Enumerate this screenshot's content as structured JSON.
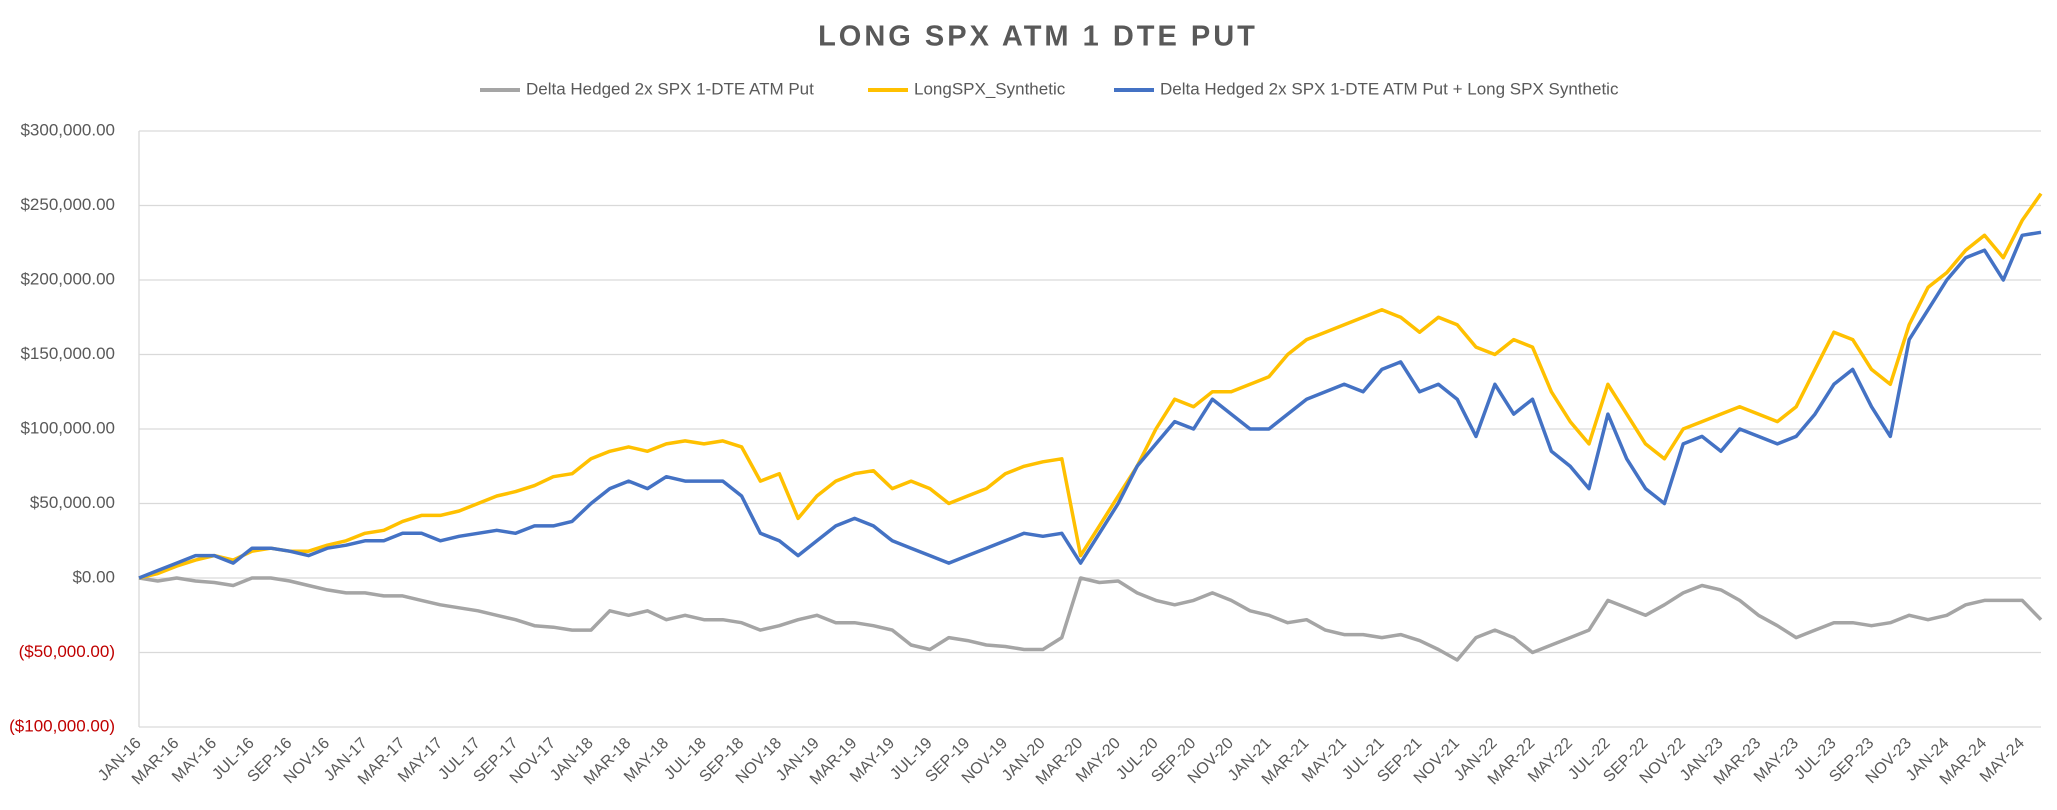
{
  "chart_data": {
    "type": "line",
    "title": "LONG SPX ATM 1 DTE PUT",
    "categories": [
      "JAN-16",
      null,
      "MAR-16",
      null,
      "MAY-16",
      null,
      "JUL-16",
      null,
      "SEP-16",
      null,
      "NOV-16",
      null,
      "JAN-17",
      null,
      "MAR-17",
      null,
      "MAY-17",
      null,
      "JUL-17",
      null,
      "SEP-17",
      null,
      "NOV-17",
      null,
      "JAN-18",
      null,
      "MAR-18",
      null,
      "MAY-18",
      null,
      "JUL-18",
      null,
      "SEP-18",
      null,
      "NOV-18",
      null,
      "JAN-19",
      null,
      "MAR-19",
      null,
      "MAY-19",
      null,
      "JUL-19",
      null,
      "SEP-19",
      null,
      "NOV-19",
      null,
      "JAN-20",
      null,
      "MAR-20",
      null,
      "MAY-20",
      null,
      "JUL-20",
      null,
      "SEP-20",
      null,
      "NOV-20",
      null,
      "JAN-21",
      null,
      "MAR-21",
      null,
      "MAY-21",
      null,
      "JUL-21",
      null,
      "SEP-21",
      null,
      "NOV-21",
      null,
      "JAN-22",
      null,
      "MAR-22",
      null,
      "MAY-22",
      null,
      "JUL-22",
      null,
      "SEP-22",
      null,
      "NOV-22",
      null,
      "JAN-23",
      null,
      "MAR-23",
      null,
      "MAY-23",
      null,
      "JUL-23",
      null,
      "SEP-23",
      null,
      "NOV-23",
      null,
      "JAN-24",
      null,
      "MAR-24",
      null,
      "MAY-24",
      null
    ],
    "series": [
      {
        "name": "Delta Hedged 2x SPX 1-DTE ATM Put",
        "color": "#a5a5a5",
        "values": [
          0,
          -2000,
          0,
          -2000,
          -3000,
          -5000,
          0,
          0,
          -2000,
          -5000,
          -8000,
          -10000,
          -10000,
          -12000,
          -12000,
          -15000,
          -18000,
          -20000,
          -22000,
          -25000,
          -28000,
          -32000,
          -33000,
          -35000,
          -35000,
          -22000,
          -25000,
          -22000,
          -28000,
          -25000,
          -28000,
          -28000,
          -30000,
          -35000,
          -32000,
          -28000,
          -25000,
          -30000,
          -30000,
          -32000,
          -35000,
          -45000,
          -48000,
          -40000,
          -42000,
          -45000,
          -46000,
          -48000,
          -48000,
          -40000,
          0,
          -3000,
          -2000,
          -10000,
          -15000,
          -18000,
          -15000,
          -10000,
          -15000,
          -22000,
          -25000,
          -30000,
          -28000,
          -35000,
          -38000,
          -38000,
          -40000,
          -38000,
          -42000,
          -48000,
          -55000,
          -40000,
          -35000,
          -40000,
          -50000,
          -45000,
          -40000,
          -35000,
          -15000,
          -20000,
          -25000,
          -18000,
          -10000,
          -5000,
          -8000,
          -15000,
          -25000,
          -32000,
          -40000,
          -35000,
          -30000,
          -30000,
          -32000,
          -30000,
          -25000,
          -28000,
          -25000,
          -18000,
          -15000,
          -15000,
          -15000,
          -28000
        ]
      },
      {
        "name": "LongSPX_Synthetic",
        "color": "#ffc000",
        "values": [
          0,
          3000,
          8000,
          12000,
          15000,
          12000,
          18000,
          20000,
          18000,
          18000,
          22000,
          25000,
          30000,
          32000,
          38000,
          42000,
          42000,
          45000,
          50000,
          55000,
          58000,
          62000,
          68000,
          70000,
          80000,
          85000,
          88000,
          85000,
          90000,
          92000,
          90000,
          92000,
          88000,
          65000,
          70000,
          40000,
          55000,
          65000,
          70000,
          72000,
          60000,
          65000,
          60000,
          50000,
          55000,
          60000,
          70000,
          75000,
          78000,
          80000,
          15000,
          35000,
          55000,
          75000,
          100000,
          120000,
          115000,
          125000,
          125000,
          130000,
          135000,
          150000,
          160000,
          165000,
          170000,
          175000,
          180000,
          175000,
          165000,
          175000,
          170000,
          155000,
          150000,
          160000,
          155000,
          125000,
          105000,
          90000,
          130000,
          110000,
          90000,
          80000,
          100000,
          105000,
          110000,
          115000,
          110000,
          105000,
          115000,
          140000,
          165000,
          160000,
          140000,
          130000,
          170000,
          195000,
          205000,
          220000,
          230000,
          215000,
          240000,
          258000
        ]
      },
      {
        "name": "Delta Hedged 2x SPX 1-DTE ATM Put + Long SPX Synthetic",
        "color": "#4472c4",
        "values": [
          0,
          5000,
          10000,
          15000,
          15000,
          10000,
          20000,
          20000,
          18000,
          15000,
          20000,
          22000,
          25000,
          25000,
          30000,
          30000,
          25000,
          28000,
          30000,
          32000,
          30000,
          35000,
          35000,
          38000,
          50000,
          60000,
          65000,
          60000,
          68000,
          65000,
          65000,
          65000,
          55000,
          30000,
          25000,
          15000,
          25000,
          35000,
          40000,
          35000,
          25000,
          20000,
          15000,
          10000,
          15000,
          20000,
          25000,
          30000,
          28000,
          30000,
          10000,
          30000,
          50000,
          75000,
          90000,
          105000,
          100000,
          120000,
          110000,
          100000,
          100000,
          110000,
          120000,
          125000,
          130000,
          125000,
          140000,
          145000,
          125000,
          130000,
          120000,
          95000,
          130000,
          110000,
          120000,
          85000,
          75000,
          60000,
          110000,
          80000,
          60000,
          50000,
          90000,
          95000,
          85000,
          100000,
          95000,
          90000,
          95000,
          110000,
          130000,
          140000,
          115000,
          95000,
          160000,
          180000,
          200000,
          215000,
          220000,
          200000,
          230000,
          232000
        ]
      }
    ],
    "ylim": [
      -100000,
      300000
    ],
    "yticks": [
      {
        "value": -100000,
        "label": "($100,000.00)"
      },
      {
        "value": -50000,
        "label": "($50,000.00)"
      },
      {
        "value": 0,
        "label": "$0.00"
      },
      {
        "value": 50000,
        "label": "$50,000.00"
      },
      {
        "value": 100000,
        "label": "$100,000.00"
      },
      {
        "value": 150000,
        "label": "$150,000.00"
      },
      {
        "value": 200000,
        "label": "$200,000.00"
      },
      {
        "value": 250000,
        "label": "$250,000.00"
      },
      {
        "value": 300000,
        "label": "$300,000.00"
      }
    ],
    "grid": true,
    "negative_tick_color": "#c00000",
    "legend": "top"
  }
}
